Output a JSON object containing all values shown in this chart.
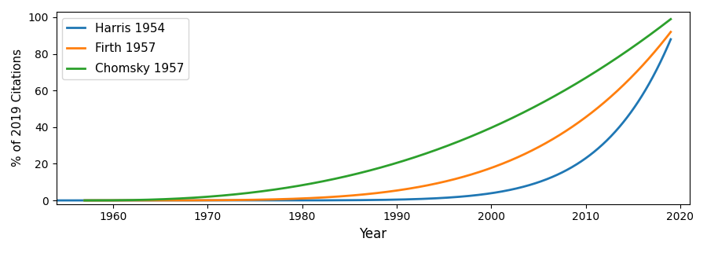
{
  "title": "",
  "xlabel": "Year",
  "ylabel": "% of 2019 Citations",
  "xlim": [
    1954,
    2021
  ],
  "ylim": [
    -2,
    103
  ],
  "xticks": [
    1960,
    1970,
    1980,
    1990,
    2000,
    2010,
    2020
  ],
  "yticks": [
    0,
    20,
    40,
    60,
    80,
    100
  ],
  "series": [
    {
      "label": "Harris 1954",
      "color": "#1f77b4",
      "start_year": 1954,
      "end_year": 2019,
      "exponent": 9.0,
      "final_value": 88
    },
    {
      "label": "Firth 1957",
      "color": "#ff7f0e",
      "start_year": 1957,
      "end_year": 2019,
      "exponent": 4.5,
      "final_value": 92
    },
    {
      "label": "Chomsky 1957",
      "color": "#2ca02c",
      "start_year": 1957,
      "end_year": 2019,
      "exponent": 2.5,
      "final_value": 99
    }
  ],
  "legend_loc": "upper left",
  "legend_fontsize": 11,
  "legend_labelspacing": 0.7,
  "figsize": [
    9.0,
    3.22
  ],
  "dpi": 100,
  "linewidth": 2.0,
  "transparent": true
}
